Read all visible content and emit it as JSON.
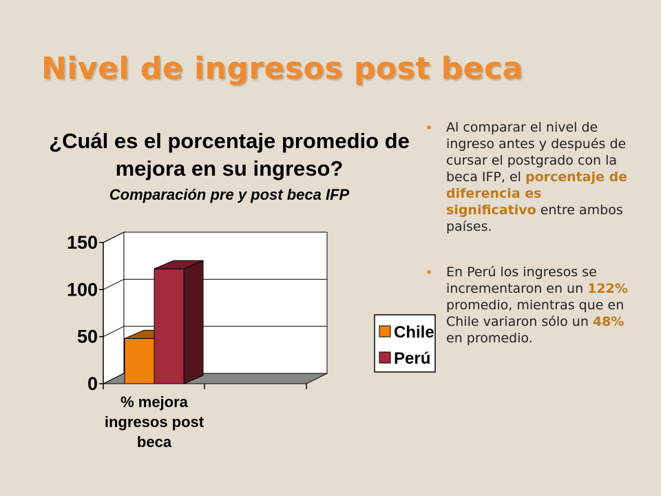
{
  "slide": {
    "title": "Nivel de ingresos post beca"
  },
  "bullets": [
    {
      "segments": [
        {
          "text": "Al comparar el nivel de  ingreso antes y después de cursar el postgrado con la beca IFP, el ",
          "highlight": false
        },
        {
          "text": "porcentaje de diferencia es significativo",
          "highlight": true
        },
        {
          "text": " entre ambos países.",
          "highlight": false
        }
      ]
    },
    {
      "segments": [
        {
          "text": "En Perú los ingresos se incrementaron en un ",
          "highlight": false
        },
        {
          "text": "122%",
          "highlight": true
        },
        {
          "text": " promedio, mientras que en Chile variaron sólo un ",
          "highlight": false
        },
        {
          "text": "48%",
          "highlight": true
        },
        {
          "text": " en promedio.",
          "highlight": false
        }
      ]
    }
  ],
  "colors": {
    "title": "#f08a30",
    "highlight": "#c07a1a",
    "background": "#e5ddd0",
    "chile": "#f0820a",
    "peru": "#a32a3a"
  },
  "chart_data": {
    "type": "bar",
    "title": "¿Cuál es el porcentaje promedio de mejora en su ingreso?",
    "title_lines": [
      "¿Cuál es el porcentaje promedio de",
      "mejora en su ingreso?"
    ],
    "subtitle": "Comparación pre y post beca IFP",
    "categories": [
      "% mejora ingresos post beca"
    ],
    "category_label_lines": [
      "% mejora",
      "ingresos post",
      "beca"
    ],
    "series": [
      {
        "name": "Chile",
        "values": [
          48
        ],
        "color": "#f0820a"
      },
      {
        "name": "Perú",
        "values": [
          122
        ],
        "color": "#a32a3a"
      }
    ],
    "ylim": [
      0,
      150
    ],
    "yticks": [
      "0",
      "50",
      "100",
      "150"
    ],
    "grid": true,
    "three_d": true,
    "legend_position": "right",
    "xlabel": "",
    "ylabel": ""
  }
}
